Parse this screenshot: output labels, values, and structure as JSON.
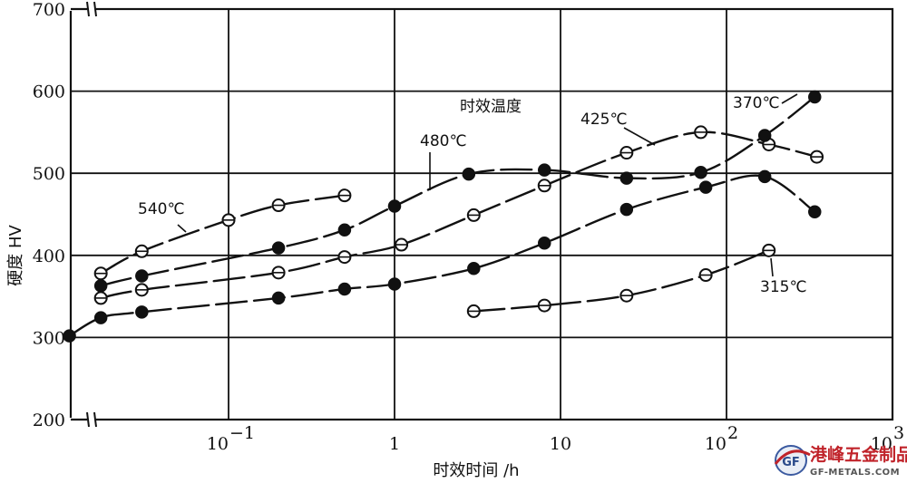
{
  "chart_data": {
    "type": "scatter",
    "title": "",
    "xlabel": "时效时间 /h",
    "ylabel": "硬度 HV",
    "xscale": "log",
    "xlim": [
      0.0105,
      1000
    ],
    "ylim": [
      200,
      700
    ],
    "grid": true,
    "legend_title": "时效温度",
    "x_ticks": [
      {
        "value": 0.1,
        "base": "10",
        "exp": "−1"
      },
      {
        "value": 1,
        "base": "1",
        "exp": ""
      },
      {
        "value": 10,
        "base": "10",
        "exp": ""
      },
      {
        "value": 100,
        "base": "10",
        "exp": "2"
      },
      {
        "value": 1000,
        "base": "10",
        "exp": "3"
      }
    ],
    "y_ticks": [
      200,
      300,
      400,
      500,
      600,
      700
    ],
    "series": [
      {
        "name": "540℃",
        "marker": "half",
        "points": [
          [
            0.017,
            378
          ],
          [
            0.03,
            405
          ],
          [
            0.1,
            443
          ],
          [
            0.2,
            461
          ],
          [
            0.5,
            473
          ]
        ]
      },
      {
        "name": "480℃",
        "marker": "half",
        "points": [
          [
            0.017,
            348
          ],
          [
            0.03,
            358
          ],
          [
            0.2,
            379
          ],
          [
            0.5,
            398
          ],
          [
            1.1,
            413
          ],
          [
            3,
            449
          ],
          [
            8,
            485
          ],
          [
            25,
            525
          ],
          [
            70,
            550
          ],
          [
            180,
            535
          ],
          [
            350,
            520
          ]
        ]
      },
      {
        "name": "425℃",
        "marker": "filled",
        "points": [
          [
            0.017,
            363
          ],
          [
            0.03,
            375
          ],
          [
            0.2,
            409
          ],
          [
            0.5,
            431
          ],
          [
            1,
            460
          ],
          [
            2.8,
            499
          ],
          [
            8,
            504
          ],
          [
            25,
            494
          ],
          [
            70,
            501
          ],
          [
            170,
            546
          ],
          [
            340,
            593
          ]
        ]
      },
      {
        "name": "370℃",
        "marker": "filled",
        "points": [
          [
            0.011,
            302
          ],
          [
            0.017,
            324
          ],
          [
            0.03,
            331
          ],
          [
            0.2,
            348
          ],
          [
            0.5,
            359
          ],
          [
            1,
            365
          ],
          [
            3,
            384
          ],
          [
            8,
            415
          ],
          [
            25,
            456
          ],
          [
            75,
            483
          ],
          [
            170,
            496
          ],
          [
            340,
            453
          ]
        ]
      },
      {
        "name": "315℃",
        "marker": "half",
        "points": [
          [
            3,
            332
          ],
          [
            8,
            339
          ],
          [
            25,
            351
          ],
          [
            75,
            376
          ],
          [
            180,
            406
          ]
        ]
      }
    ]
  },
  "watermark": {
    "cn": "港峰五金制品",
    "en": "GF-METALS.COM",
    "mark": "GF"
  }
}
